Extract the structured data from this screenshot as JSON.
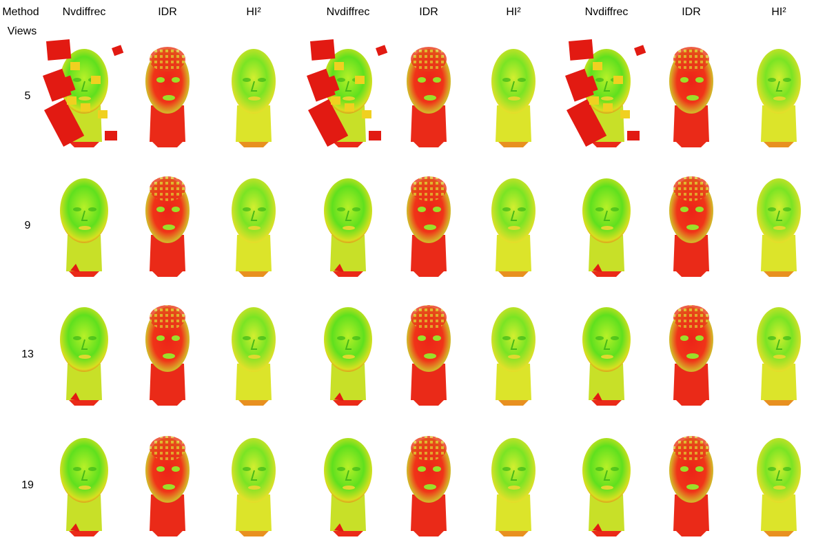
{
  "header": {
    "method": "Method",
    "views": "Views"
  },
  "columns": [
    "Nvdiffrec",
    "IDR",
    "HI²",
    "Nvdiffrec",
    "IDR",
    "HI²",
    "Nvdiffrec",
    "IDR",
    "HI²"
  ],
  "rows": [
    5,
    9,
    13,
    19
  ]
}
